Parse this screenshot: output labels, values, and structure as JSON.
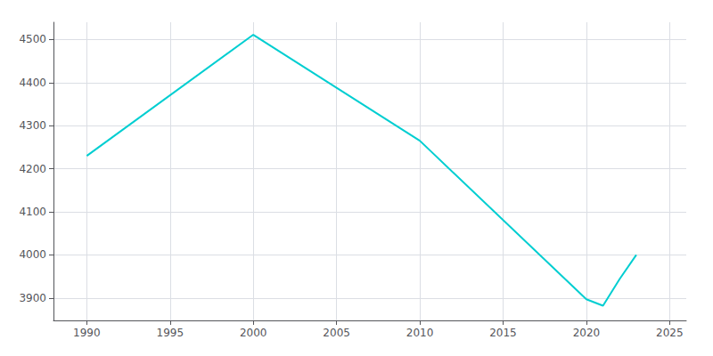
{
  "chart_data": {
    "type": "line",
    "x": [
      1990,
      2000,
      2010,
      2020,
      2021,
      2022,
      2023
    ],
    "values": [
      4230,
      4511,
      4265,
      3897,
      3882,
      3944,
      4000
    ],
    "color": "#00CED1",
    "xlim": [
      1988,
      2026
    ],
    "xticks": [
      1990,
      1995,
      2000,
      2005,
      2010,
      2015,
      2020,
      2025
    ],
    "ylim": [
      3848,
      4540
    ],
    "yticks": [
      3900,
      4000,
      4100,
      4200,
      4300,
      4400,
      4500
    ],
    "grid": true
  }
}
